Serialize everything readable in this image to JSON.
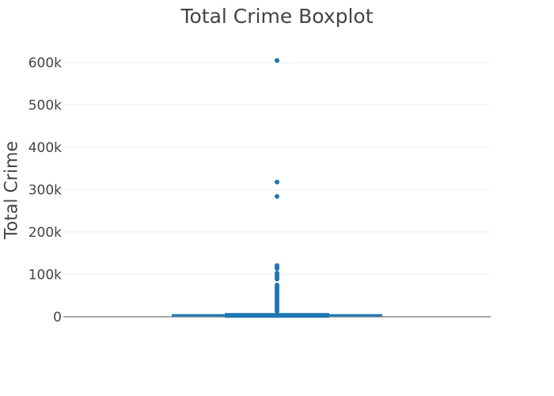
{
  "chart_data": {
    "type": "box",
    "title": "Total Crime Boxplot",
    "xlabel": "",
    "ylabel": "Total Crime",
    "ylim": [
      -12000,
      640000
    ],
    "y_ticks": [
      0,
      100000,
      200000,
      300000,
      400000,
      500000,
      600000
    ],
    "y_tick_labels": [
      "0",
      "100k",
      "200k",
      "300k",
      "400k",
      "500k",
      "600k"
    ],
    "grid": true,
    "color": "#1f77b4",
    "box": {
      "min": 0,
      "q1": 600,
      "median": 1800,
      "q3": 5200,
      "upper_fence": 11000
    },
    "outliers": [
      605000,
      318000,
      284000,
      121000,
      117000,
      114000,
      103000,
      98000,
      93000,
      89000,
      75000,
      72000,
      68000,
      64000,
      60000,
      57000,
      53000,
      49000,
      45000,
      41000,
      37000,
      33000,
      29000,
      25000,
      21000,
      17000,
      13000
    ]
  }
}
